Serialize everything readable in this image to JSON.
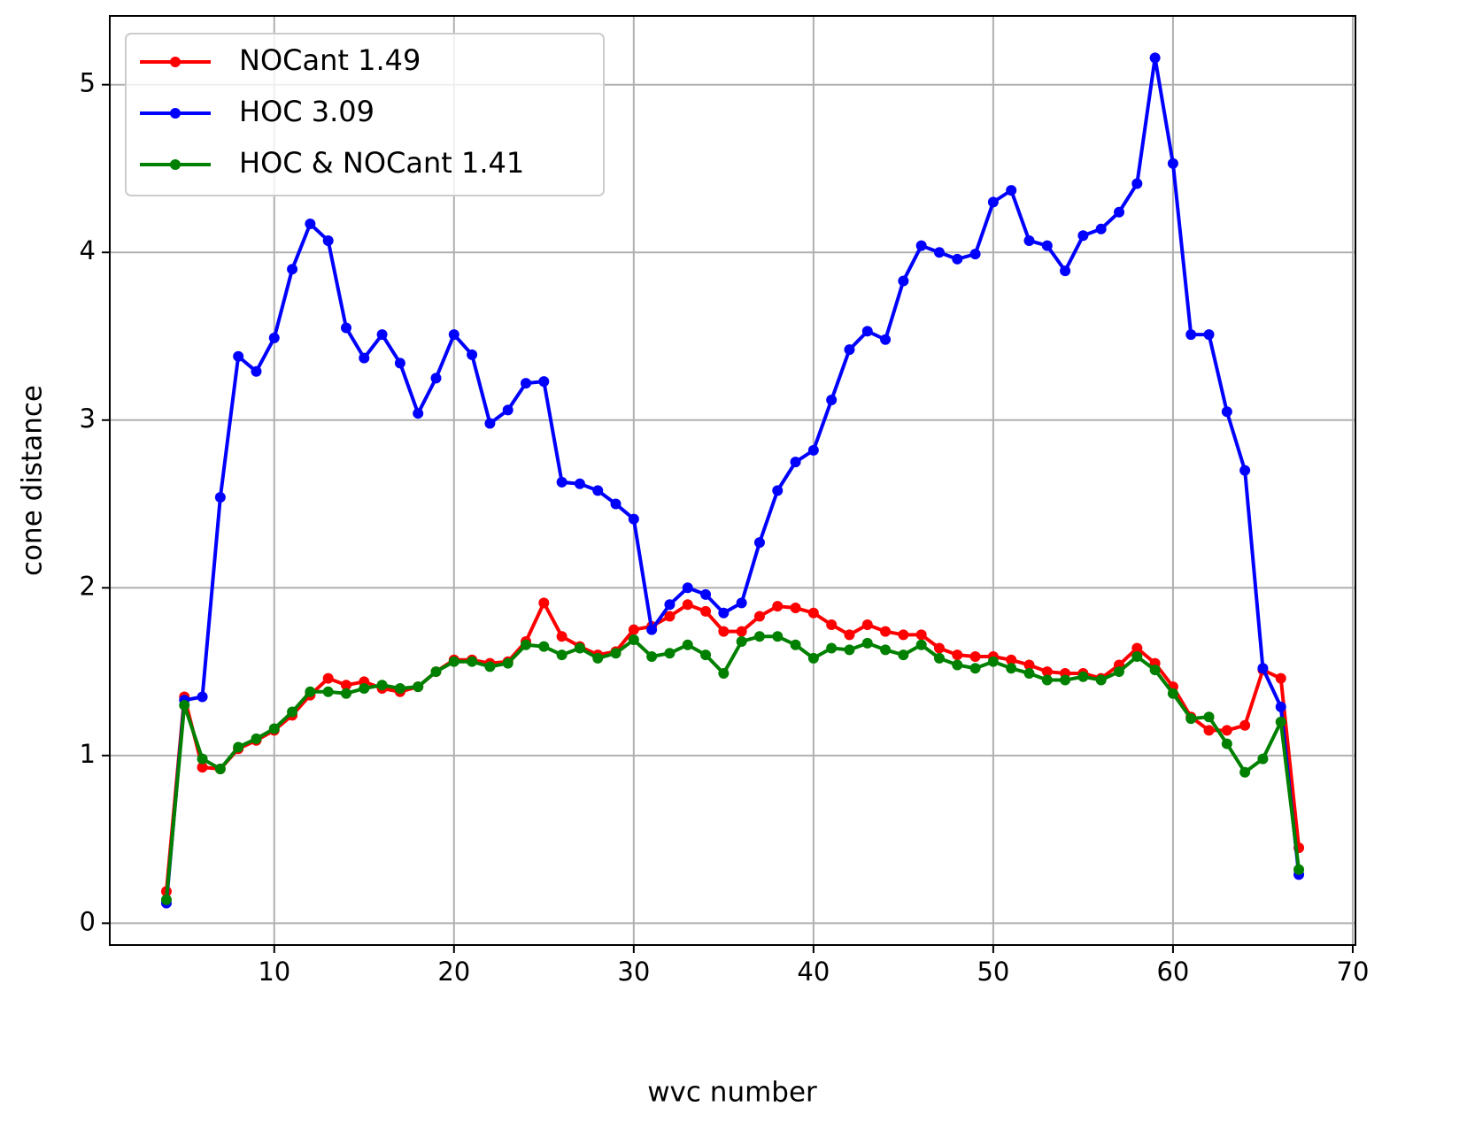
{
  "chart_data": {
    "type": "line",
    "xlabel": "wvc number",
    "ylabel": "cone distance",
    "x": [
      4,
      5,
      6,
      7,
      8,
      9,
      10,
      11,
      12,
      13,
      14,
      15,
      16,
      17,
      18,
      19,
      20,
      21,
      22,
      23,
      24,
      25,
      26,
      27,
      28,
      29,
      30,
      31,
      32,
      33,
      34,
      35,
      36,
      37,
      38,
      39,
      40,
      41,
      42,
      43,
      44,
      45,
      46,
      47,
      48,
      49,
      50,
      51,
      52,
      53,
      54,
      55,
      56,
      57,
      58,
      59,
      60,
      61,
      62,
      63,
      64,
      65,
      66,
      67
    ],
    "series": [
      {
        "name": "NOCant 1.49",
        "color": "#ff0000",
        "values": [
          0.19,
          1.35,
          0.93,
          0.92,
          1.04,
          1.09,
          1.15,
          1.24,
          1.36,
          1.46,
          1.42,
          1.44,
          1.4,
          1.38,
          1.41,
          1.5,
          1.57,
          1.57,
          1.55,
          1.56,
          1.68,
          1.91,
          1.71,
          1.65,
          1.6,
          1.62,
          1.75,
          1.77,
          1.83,
          1.9,
          1.86,
          1.74,
          1.74,
          1.83,
          1.89,
          1.88,
          1.85,
          1.78,
          1.72,
          1.78,
          1.74,
          1.72,
          1.72,
          1.64,
          1.6,
          1.59,
          1.59,
          1.57,
          1.54,
          1.5,
          1.49,
          1.49,
          1.46,
          1.54,
          1.64,
          1.55,
          1.41,
          1.23,
          1.15,
          1.15,
          1.18,
          1.51,
          1.46,
          0.45
        ]
      },
      {
        "name": "HOC 3.09",
        "color": "#0000ff",
        "values": [
          0.12,
          1.33,
          1.35,
          2.54,
          3.38,
          3.29,
          3.49,
          3.9,
          4.17,
          4.07,
          3.55,
          3.37,
          3.51,
          3.34,
          3.04,
          3.25,
          3.51,
          3.39,
          2.98,
          3.06,
          3.22,
          3.23,
          2.63,
          2.62,
          2.58,
          2.5,
          2.41,
          1.75,
          1.9,
          2.0,
          1.96,
          1.85,
          1.91,
          2.27,
          2.58,
          2.75,
          2.82,
          3.12,
          3.42,
          3.53,
          3.48,
          3.83,
          4.04,
          4.0,
          3.96,
          3.99,
          4.3,
          4.37,
          4.07,
          4.04,
          3.89,
          4.1,
          4.14,
          4.24,
          4.41,
          5.16,
          4.53,
          3.51,
          3.51,
          3.05,
          2.7,
          1.52,
          1.29,
          0.29
        ]
      },
      {
        "name": "HOC & NOCant 1.41",
        "color": "#008000",
        "values": [
          0.14,
          1.3,
          0.98,
          0.92,
          1.05,
          1.1,
          1.16,
          1.26,
          1.38,
          1.38,
          1.37,
          1.4,
          1.42,
          1.4,
          1.41,
          1.5,
          1.56,
          1.56,
          1.53,
          1.55,
          1.66,
          1.65,
          1.6,
          1.64,
          1.58,
          1.61,
          1.69,
          1.59,
          1.61,
          1.66,
          1.6,
          1.49,
          1.68,
          1.71,
          1.71,
          1.66,
          1.58,
          1.64,
          1.63,
          1.67,
          1.63,
          1.6,
          1.66,
          1.58,
          1.54,
          1.52,
          1.56,
          1.52,
          1.49,
          1.45,
          1.45,
          1.47,
          1.45,
          1.5,
          1.59,
          1.51,
          1.37,
          1.22,
          1.23,
          1.07,
          0.9,
          0.98,
          1.2,
          0.32
        ]
      }
    ],
    "xlim": [
      0.85,
      70.15
    ],
    "ylim": [
      -0.13,
      5.41
    ],
    "xticks": [
      10,
      20,
      30,
      40,
      50,
      60,
      70
    ],
    "yticks": [
      0,
      1,
      2,
      3,
      4,
      5
    ],
    "grid": true,
    "legend": "upper left"
  }
}
